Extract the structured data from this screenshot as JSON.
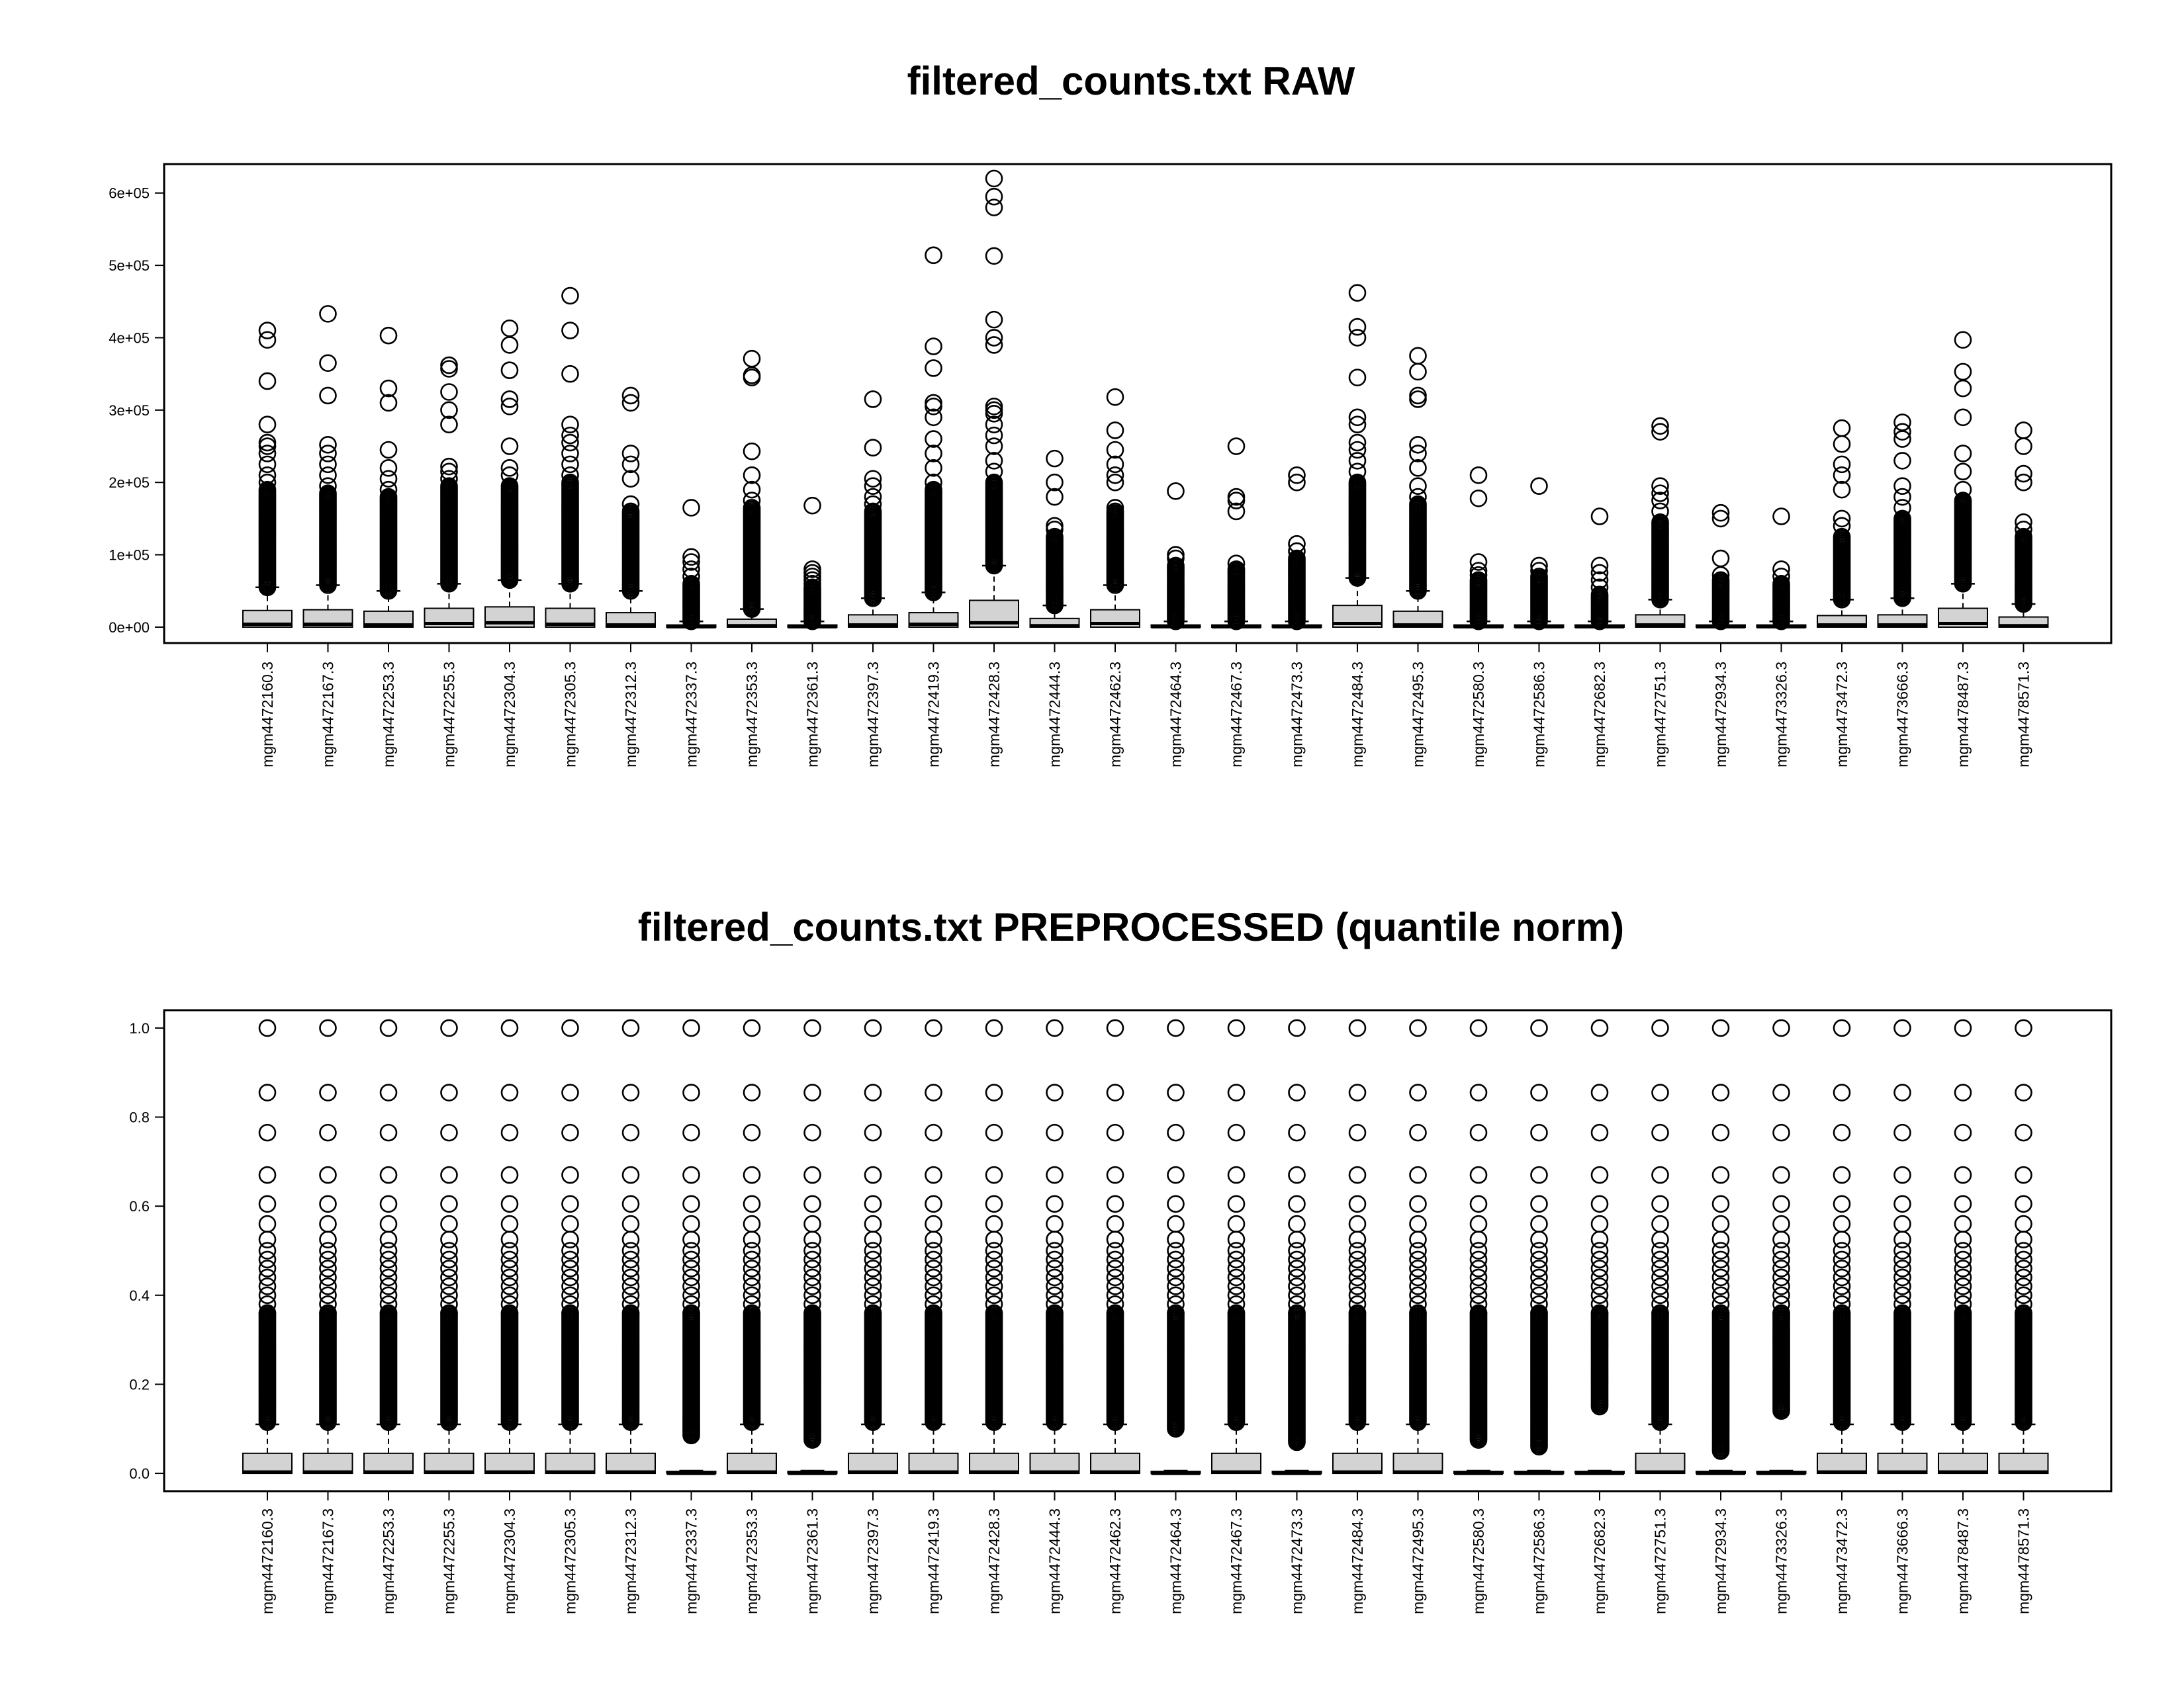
{
  "chart_data": [
    {
      "type": "boxplot",
      "title": "filtered_counts.txt RAW",
      "xlabel": "",
      "ylabel": "",
      "ylim": [
        -22000,
        640000
      ],
      "yticks": [
        0,
        100000,
        200000,
        300000,
        400000,
        500000,
        600000
      ],
      "ytick_labels": [
        "0e+00",
        "1e+05",
        "2e+05",
        "3e+05",
        "4e+05",
        "5e+05",
        "6e+05"
      ],
      "grid": false,
      "legend": "none",
      "box_fill": "#d3d3d3",
      "categories": [
        "mgm4472160.3",
        "mgm4472167.3",
        "mgm4472253.3",
        "mgm4472255.3",
        "mgm4472304.3",
        "mgm4472305.3",
        "mgm4472312.3",
        "mgm4472337.3",
        "mgm4472353.3",
        "mgm4472361.3",
        "mgm4472397.3",
        "mgm4472419.3",
        "mgm4472428.3",
        "mgm4472444.3",
        "mgm4472462.3",
        "mgm4472464.3",
        "mgm4472467.3",
        "mgm4472473.3",
        "mgm4472484.3",
        "mgm4472495.3",
        "mgm4472580.3",
        "mgm4472586.3",
        "mgm4472682.3",
        "mgm4472751.3",
        "mgm4472934.3",
        "mgm4473326.3",
        "mgm4473472.3",
        "mgm4473666.3",
        "mgm4478487.3",
        "mgm4478571.3"
      ],
      "boxes": [
        {
          "q1": 0,
          "median": 4000,
          "q3": 23000,
          "whisker_hi": 55000,
          "outlier_top": 190000,
          "outliers_high": [
            200000,
            210000,
            225000,
            240000,
            250000,
            255000,
            280000,
            340000,
            397000,
            410000
          ]
        },
        {
          "q1": 0,
          "median": 4000,
          "q3": 24000,
          "whisker_hi": 58000,
          "outlier_top": 185000,
          "outliers_high": [
            195000,
            210000,
            225000,
            240000,
            252000,
            320000,
            365000,
            433000
          ]
        },
        {
          "q1": 0,
          "median": 3000,
          "q3": 22000,
          "whisker_hi": 50000,
          "outlier_top": 180000,
          "outliers_high": [
            190000,
            205000,
            220000,
            245000,
            310000,
            330000,
            403000
          ]
        },
        {
          "q1": 0,
          "median": 5000,
          "q3": 26000,
          "whisker_hi": 60000,
          "outlier_top": 195000,
          "outliers_high": [
            205000,
            215000,
            222000,
            280000,
            300000,
            325000,
            357000,
            362000
          ]
        },
        {
          "q1": 0,
          "median": 6000,
          "q3": 28000,
          "whisker_hi": 65000,
          "outlier_top": 195000,
          "outliers_high": [
            210000,
            220000,
            250000,
            305000,
            315000,
            355000,
            390000,
            413000
          ]
        },
        {
          "q1": 0,
          "median": 4000,
          "q3": 26000,
          "whisker_hi": 60000,
          "outlier_top": 200000,
          "outliers_high": [
            210000,
            225000,
            240000,
            255000,
            265000,
            280000,
            350000,
            410000,
            458000
          ]
        },
        {
          "q1": 0,
          "median": 3000,
          "q3": 20000,
          "whisker_hi": 50000,
          "outlier_top": 160000,
          "outliers_high": [
            170000,
            205000,
            225000,
            240000,
            310000,
            320000
          ]
        },
        {
          "q1": 0,
          "median": 500,
          "q3": 3000,
          "whisker_hi": 8000,
          "outlier_top": 60000,
          "outliers_high": [
            70000,
            80000,
            90000,
            97000,
            165000
          ]
        },
        {
          "q1": 0,
          "median": 2000,
          "q3": 11000,
          "whisker_hi": 25000,
          "outlier_top": 165000,
          "outliers_high": [
            175000,
            190000,
            210000,
            243000,
            345000,
            348000,
            371000
          ]
        },
        {
          "q1": 0,
          "median": 500,
          "q3": 3000,
          "whisker_hi": 8000,
          "outlier_top": 55000,
          "outliers_high": [
            60000,
            65000,
            70000,
            75000,
            80000,
            168000
          ]
        },
        {
          "q1": 0,
          "median": 3000,
          "q3": 17000,
          "whisker_hi": 40000,
          "outlier_top": 160000,
          "outliers_high": [
            170000,
            180000,
            195000,
            205000,
            248000,
            315000
          ]
        },
        {
          "q1": 0,
          "median": 4000,
          "q3": 20000,
          "whisker_hi": 48000,
          "outlier_top": 190000,
          "outliers_high": [
            200000,
            220000,
            240000,
            260000,
            290000,
            305000,
            310000,
            358000,
            388000,
            514000
          ]
        },
        {
          "q1": 0,
          "median": 6000,
          "q3": 37000,
          "whisker_hi": 85000,
          "outlier_top": 200000,
          "outliers_high": [
            215000,
            230000,
            250000,
            265000,
            280000,
            295000,
            300000,
            305000,
            390000,
            400000,
            425000,
            513000,
            580000,
            595000,
            620000
          ]
        },
        {
          "q1": 0,
          "median": 2000,
          "q3": 12000,
          "whisker_hi": 30000,
          "outlier_top": 125000,
          "outliers_high": [
            135000,
            140000,
            180000,
            200000,
            233000
          ]
        },
        {
          "q1": 0,
          "median": 5000,
          "q3": 24000,
          "whisker_hi": 58000,
          "outlier_top": 160000,
          "outliers_high": [
            165000,
            200000,
            210000,
            225000,
            245000,
            272000,
            318000
          ]
        },
        {
          "q1": 0,
          "median": 500,
          "q3": 3000,
          "whisker_hi": 8000,
          "outlier_top": 85000,
          "outliers_high": [
            95000,
            100000,
            188000
          ]
        },
        {
          "q1": 0,
          "median": 500,
          "q3": 3000,
          "whisker_hi": 8000,
          "outlier_top": 80000,
          "outliers_high": [
            88000,
            160000,
            175000,
            180000,
            250000
          ]
        },
        {
          "q1": 0,
          "median": 500,
          "q3": 3000,
          "whisker_hi": 8000,
          "outlier_top": 95000,
          "outliers_high": [
            105000,
            115000,
            200000,
            210000
          ]
        },
        {
          "q1": 0,
          "median": 5000,
          "q3": 30000,
          "whisker_hi": 68000,
          "outlier_top": 200000,
          "outliers_high": [
            215000,
            230000,
            245000,
            255000,
            280000,
            290000,
            345000,
            400000,
            415000,
            462000
          ]
        },
        {
          "q1": 0,
          "median": 3000,
          "q3": 22000,
          "whisker_hi": 50000,
          "outlier_top": 170000,
          "outliers_high": [
            180000,
            195000,
            220000,
            240000,
            252000,
            315000,
            320000,
            353000,
            375000
          ]
        },
        {
          "q1": 0,
          "median": 500,
          "q3": 3000,
          "whisker_hi": 8000,
          "outlier_top": 65000,
          "outliers_high": [
            72000,
            78000,
            90000,
            178000,
            210000
          ]
        },
        {
          "q1": 0,
          "median": 500,
          "q3": 3000,
          "whisker_hi": 8000,
          "outlier_top": 70000,
          "outliers_high": [
            78000,
            85000,
            195000
          ]
        },
        {
          "q1": 0,
          "median": 500,
          "q3": 3000,
          "whisker_hi": 8000,
          "outlier_top": 45000,
          "outliers_high": [
            55000,
            65000,
            75000,
            85000,
            153000
          ]
        },
        {
          "q1": 0,
          "median": 3000,
          "q3": 17000,
          "whisker_hi": 38000,
          "outlier_top": 145000,
          "outliers_high": [
            160000,
            175000,
            185000,
            195000,
            270000,
            278000
          ]
        },
        {
          "q1": 0,
          "median": 500,
          "q3": 3000,
          "whisker_hi": 8000,
          "outlier_top": 65000,
          "outliers_high": [
            72000,
            95000,
            150000,
            158000
          ]
        },
        {
          "q1": 0,
          "median": 500,
          "q3": 3000,
          "whisker_hi": 8000,
          "outlier_top": 60000,
          "outliers_high": [
            70000,
            80000,
            153000
          ]
        },
        {
          "q1": 0,
          "median": 3000,
          "q3": 16000,
          "whisker_hi": 38000,
          "outlier_top": 125000,
          "outliers_high": [
            140000,
            150000,
            190000,
            210000,
            225000,
            253000,
            275000
          ]
        },
        {
          "q1": 0,
          "median": 3000,
          "q3": 17000,
          "whisker_hi": 40000,
          "outlier_top": 150000,
          "outliers_high": [
            165000,
            180000,
            195000,
            230000,
            260000,
            270000,
            283000
          ]
        },
        {
          "q1": 0,
          "median": 5000,
          "q3": 26000,
          "whisker_hi": 60000,
          "outlier_top": 175000,
          "outliers_high": [
            190000,
            215000,
            240000,
            290000,
            330000,
            353000,
            397000
          ]
        },
        {
          "q1": 0,
          "median": 2000,
          "q3": 14000,
          "whisker_hi": 32000,
          "outlier_top": 125000,
          "outliers_high": [
            135000,
            145000,
            200000,
            212000,
            250000,
            272000
          ]
        }
      ]
    },
    {
      "type": "boxplot",
      "title": "filtered_counts.txt PREPROCESSED (quantile norm)",
      "xlabel": "",
      "ylabel": "",
      "ylim": [
        -0.04,
        1.04
      ],
      "yticks": [
        0,
        0.2,
        0.4,
        0.6,
        0.8,
        1.0
      ],
      "ytick_labels": [
        "0.0",
        "0.2",
        "0.4",
        "0.6",
        "0.8",
        "1.0"
      ],
      "grid": false,
      "legend": "none",
      "box_fill": "#d3d3d3",
      "categories": [
        "mgm4472160.3",
        "mgm4472167.3",
        "mgm4472253.3",
        "mgm4472255.3",
        "mgm4472304.3",
        "mgm4472305.3",
        "mgm4472312.3",
        "mgm4472337.3",
        "mgm4472353.3",
        "mgm4472361.3",
        "mgm4472397.3",
        "mgm4472419.3",
        "mgm4472428.3",
        "mgm4472444.3",
        "mgm4472462.3",
        "mgm4472464.3",
        "mgm4472467.3",
        "mgm4472473.3",
        "mgm4472484.3",
        "mgm4472495.3",
        "mgm4472580.3",
        "mgm4472586.3",
        "mgm4472682.3",
        "mgm4472751.3",
        "mgm4472934.3",
        "mgm4473326.3",
        "mgm4473472.3",
        "mgm4473666.3",
        "mgm4478487.3",
        "mgm4478571.3"
      ],
      "shared_outliers_high": [
        0.36,
        0.38,
        0.4,
        0.42,
        0.44,
        0.46,
        0.48,
        0.5,
        0.525,
        0.56,
        0.605,
        0.67,
        0.765,
        0.855,
        1.0
      ],
      "boxes": [
        {
          "q1": 0,
          "median": 0.003,
          "q3": 0.045,
          "whisker_hi": 0.11,
          "outlier_start": 0.115
        },
        {
          "q1": 0,
          "median": 0.003,
          "q3": 0.045,
          "whisker_hi": 0.11,
          "outlier_start": 0.115
        },
        {
          "q1": 0,
          "median": 0.003,
          "q3": 0.045,
          "whisker_hi": 0.11,
          "outlier_start": 0.115
        },
        {
          "q1": 0,
          "median": 0.003,
          "q3": 0.045,
          "whisker_hi": 0.11,
          "outlier_start": 0.115
        },
        {
          "q1": 0,
          "median": 0.003,
          "q3": 0.045,
          "whisker_hi": 0.11,
          "outlier_start": 0.115
        },
        {
          "q1": 0,
          "median": 0.003,
          "q3": 0.045,
          "whisker_hi": 0.11,
          "outlier_start": 0.115
        },
        {
          "q1": 0,
          "median": 0.003,
          "q3": 0.045,
          "whisker_hi": 0.11,
          "outlier_start": 0.115
        },
        {
          "q1": 0,
          "median": 0,
          "q3": 0.003,
          "whisker_hi": 0.006,
          "outlier_start": 0.085
        },
        {
          "q1": 0,
          "median": 0.003,
          "q3": 0.045,
          "whisker_hi": 0.11,
          "outlier_start": 0.115
        },
        {
          "q1": 0,
          "median": 0,
          "q3": 0.003,
          "whisker_hi": 0.006,
          "outlier_start": 0.075
        },
        {
          "q1": 0,
          "median": 0.003,
          "q3": 0.045,
          "whisker_hi": 0.11,
          "outlier_start": 0.115
        },
        {
          "q1": 0,
          "median": 0.003,
          "q3": 0.045,
          "whisker_hi": 0.11,
          "outlier_start": 0.115
        },
        {
          "q1": 0,
          "median": 0.003,
          "q3": 0.045,
          "whisker_hi": 0.11,
          "outlier_start": 0.115
        },
        {
          "q1": 0,
          "median": 0.003,
          "q3": 0.045,
          "whisker_hi": 0.11,
          "outlier_start": 0.115
        },
        {
          "q1": 0,
          "median": 0.003,
          "q3": 0.045,
          "whisker_hi": 0.11,
          "outlier_start": 0.115
        },
        {
          "q1": 0,
          "median": 0,
          "q3": 0.003,
          "whisker_hi": 0.006,
          "outlier_start": 0.1
        },
        {
          "q1": 0,
          "median": 0.003,
          "q3": 0.045,
          "whisker_hi": 0.11,
          "outlier_start": 0.115
        },
        {
          "q1": 0,
          "median": 0,
          "q3": 0.003,
          "whisker_hi": 0.006,
          "outlier_start": 0.07
        },
        {
          "q1": 0,
          "median": 0.003,
          "q3": 0.045,
          "whisker_hi": 0.11,
          "outlier_start": 0.115
        },
        {
          "q1": 0,
          "median": 0.003,
          "q3": 0.045,
          "whisker_hi": 0.11,
          "outlier_start": 0.115
        },
        {
          "q1": 0,
          "median": 0,
          "q3": 0.003,
          "whisker_hi": 0.006,
          "outlier_start": 0.075
        },
        {
          "q1": 0,
          "median": 0,
          "q3": 0.003,
          "whisker_hi": 0.006,
          "outlier_start": 0.06
        },
        {
          "q1": 0,
          "median": 0,
          "q3": 0.003,
          "whisker_hi": 0.006,
          "outlier_start": 0.15
        },
        {
          "q1": 0,
          "median": 0.003,
          "q3": 0.045,
          "whisker_hi": 0.11,
          "outlier_start": 0.115
        },
        {
          "q1": 0,
          "median": 0,
          "q3": 0.003,
          "whisker_hi": 0.006,
          "outlier_start": 0.05
        },
        {
          "q1": 0,
          "median": 0,
          "q3": 0.003,
          "whisker_hi": 0.006,
          "outlier_start": 0.14
        },
        {
          "q1": 0,
          "median": 0.003,
          "q3": 0.045,
          "whisker_hi": 0.11,
          "outlier_start": 0.115
        },
        {
          "q1": 0,
          "median": 0.003,
          "q3": 0.045,
          "whisker_hi": 0.11,
          "outlier_start": 0.115
        },
        {
          "q1": 0,
          "median": 0.003,
          "q3": 0.045,
          "whisker_hi": 0.11,
          "outlier_start": 0.115
        },
        {
          "q1": 0,
          "median": 0.003,
          "q3": 0.045,
          "whisker_hi": 0.11,
          "outlier_start": 0.115
        }
      ]
    }
  ]
}
